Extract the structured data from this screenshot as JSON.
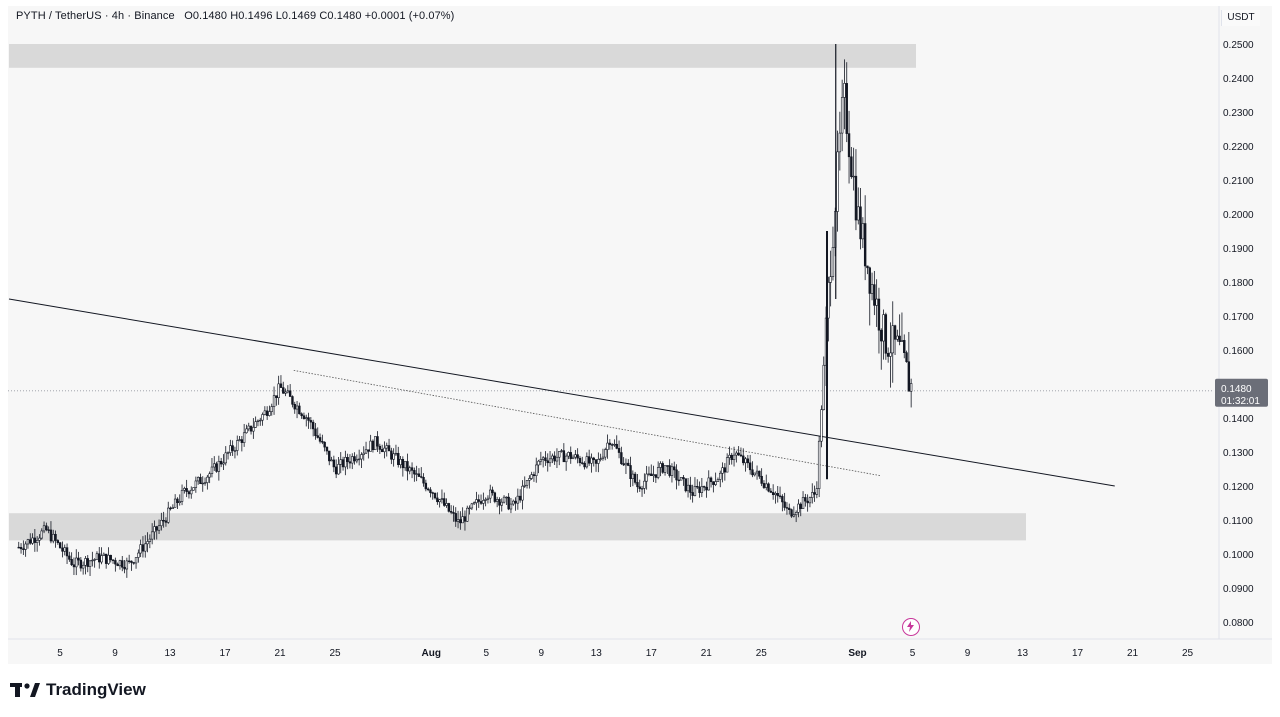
{
  "header": {
    "symbol": "PYTH / TetherUS",
    "interval": "4h",
    "exchange": "Binance",
    "open": "O0.1480",
    "high": "H0.1496",
    "low": "L0.1469",
    "close": "C0.1480",
    "change": "+0.0001 (+0.07%)"
  },
  "currency": "USDT",
  "last_price_label": "0.1480",
  "countdown_label": "01:32:01",
  "brand": "TradingView",
  "chart_data": {
    "type": "candlestick",
    "ylim": [
      0.075,
      0.255
    ],
    "y_ticks": [
      "0.2500",
      "0.2400",
      "0.2300",
      "0.2200",
      "0.2100",
      "0.2000",
      "0.1900",
      "0.1800",
      "0.1700",
      "0.1600",
      "0.1500",
      "0.1400",
      "0.1300",
      "0.1200",
      "0.1100",
      "0.1000",
      "0.0900",
      "0.0800"
    ],
    "x_ticks": [
      "5",
      "9",
      "13",
      "17",
      "21",
      "25",
      "Aug",
      "5",
      "9",
      "13",
      "17",
      "21",
      "25",
      "Sep",
      "5",
      "9",
      "13",
      "17",
      "21",
      "25"
    ],
    "close_path": [
      {
        "x": "Jul 2",
        "y": 0.102
      },
      {
        "x": "Jul 4",
        "y": 0.107
      },
      {
        "x": "Jul 6",
        "y": 0.097
      },
      {
        "x": "Jul 8",
        "y": 0.099
      },
      {
        "x": "Jul 10",
        "y": 0.097
      },
      {
        "x": "Jul 12",
        "y": 0.107
      },
      {
        "x": "Jul 14",
        "y": 0.118
      },
      {
        "x": "Jul 16",
        "y": 0.124
      },
      {
        "x": "Jul 18",
        "y": 0.133
      },
      {
        "x": "Jul 20",
        "y": 0.142
      },
      {
        "x": "Jul 21",
        "y": 0.149
      },
      {
        "x": "Jul 23",
        "y": 0.14
      },
      {
        "x": "Jul 25",
        "y": 0.125
      },
      {
        "x": "Jul 28",
        "y": 0.133
      },
      {
        "x": "Jul 30",
        "y": 0.126
      },
      {
        "x": "Aug 1",
        "y": 0.119
      },
      {
        "x": "Aug 3",
        "y": 0.109
      },
      {
        "x": "Aug 5",
        "y": 0.118
      },
      {
        "x": "Aug 7",
        "y": 0.114
      },
      {
        "x": "Aug 9",
        "y": 0.128
      },
      {
        "x": "Aug 11",
        "y": 0.129
      },
      {
        "x": "Aug 13",
        "y": 0.126
      },
      {
        "x": "Aug 14",
        "y": 0.134
      },
      {
        "x": "Aug 16",
        "y": 0.12
      },
      {
        "x": "Aug 18",
        "y": 0.126
      },
      {
        "x": "Aug 20",
        "y": 0.118
      },
      {
        "x": "Aug 22",
        "y": 0.123
      },
      {
        "x": "Aug 23",
        "y": 0.13
      },
      {
        "x": "Aug 26",
        "y": 0.118
      },
      {
        "x": "Aug 27",
        "y": 0.112
      },
      {
        "x": "Aug 29",
        "y": 0.118
      },
      {
        "x": "Aug 30",
        "y": 0.185
      },
      {
        "x": "Aug 31",
        "y": 0.235
      },
      {
        "x": "Sep 1",
        "y": 0.2
      },
      {
        "x": "Sep 2",
        "y": 0.18
      },
      {
        "x": "Sep 3",
        "y": 0.163
      },
      {
        "x": "Sep 4",
        "y": 0.16
      },
      {
        "x": "Sep 5",
        "y": 0.148
      }
    ],
    "spike_high": 0.25,
    "support_zone": [
      0.104,
      0.112
    ],
    "resistance_zone": [
      0.243,
      0.25
    ],
    "trendline": {
      "from": {
        "x": "Jul 1",
        "y": 0.175
      },
      "to": {
        "x": "Sep 20",
        "y": 0.12
      }
    },
    "dotted_line": {
      "from": {
        "x": "Jul 22",
        "y": 0.154
      },
      "to": {
        "x": "Sep 2",
        "y": 0.123
      }
    },
    "current_price": 0.148
  },
  "colors": {
    "background": "#f7f7f7",
    "candle": "#131722",
    "zone": "#d9d9d9",
    "label_bg": "#6b6e78"
  }
}
